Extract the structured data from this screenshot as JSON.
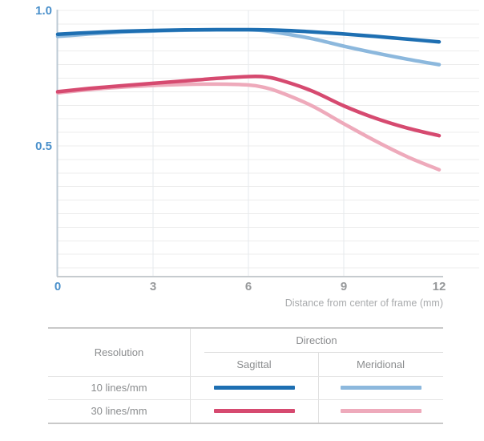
{
  "colors": {
    "accent_blue": "#4a90cb",
    "tick_gray": "#97999b",
    "caption_gray": "#a9abad",
    "grid_horizontal": "#ececec",
    "grid_vertical": "#e6eaec",
    "axis_left": "#bccad4",
    "axis_bottom": "#c6cbcf",
    "curve_10_sagittal": "#1e6fb2",
    "curve_10_meridional": "#8cb8dd",
    "curve_30_sagittal": "#d64a70",
    "curve_30_meridional": "#eeaabb"
  },
  "chart_data": {
    "type": "line",
    "title": "",
    "xlabel": "Distance from center of frame (mm)",
    "ylabel": "",
    "x_range": [
      0,
      12
    ],
    "x_ticks": [
      0,
      3,
      6,
      9,
      12
    ],
    "y_labeled_ticks": [
      1.0,
      0.5
    ],
    "y_minor_grid_step": 0.05,
    "y_shown_range": [
      0.02,
      1.03
    ],
    "grid": "on",
    "legend_position": "table below chart",
    "series": [
      {
        "name": "10 lines/mm Sagittal",
        "color": "#1e6fb2",
        "z": 4,
        "points": [
          [
            0,
            0.912
          ],
          [
            1,
            0.918
          ],
          [
            2,
            0.923
          ],
          [
            3,
            0.926
          ],
          [
            4,
            0.928
          ],
          [
            5,
            0.929
          ],
          [
            6,
            0.929
          ],
          [
            7,
            0.927
          ],
          [
            8,
            0.921
          ],
          [
            9,
            0.913
          ],
          [
            10,
            0.904
          ],
          [
            11,
            0.894
          ],
          [
            12,
            0.884
          ]
        ]
      },
      {
        "name": "10 lines/mm Meridional",
        "color": "#8cb8dd",
        "z": 1,
        "points": [
          [
            0,
            0.904
          ],
          [
            1,
            0.913
          ],
          [
            2,
            0.92
          ],
          [
            3,
            0.924
          ],
          [
            4,
            0.927
          ],
          [
            5,
            0.928
          ],
          [
            6,
            0.928
          ],
          [
            6.5,
            0.925
          ],
          [
            7,
            0.917
          ],
          [
            8,
            0.896
          ],
          [
            9,
            0.868
          ],
          [
            10,
            0.843
          ],
          [
            11,
            0.82
          ],
          [
            12,
            0.8
          ]
        ]
      },
      {
        "name": "30 lines/mm Sagittal",
        "color": "#d64a70",
        "z": 3,
        "points": [
          [
            0,
            0.7
          ],
          [
            1,
            0.712
          ],
          [
            2,
            0.722
          ],
          [
            3,
            0.731
          ],
          [
            4,
            0.74
          ],
          [
            5,
            0.749
          ],
          [
            6,
            0.756
          ],
          [
            6.5,
            0.755
          ],
          [
            7,
            0.743
          ],
          [
            8,
            0.703
          ],
          [
            9,
            0.648
          ],
          [
            10,
            0.602
          ],
          [
            11,
            0.566
          ],
          [
            12,
            0.538
          ]
        ]
      },
      {
        "name": "30 lines/mm Meridional",
        "color": "#eeaabb",
        "z": 2,
        "points": [
          [
            0,
            0.696
          ],
          [
            1,
            0.708
          ],
          [
            2,
            0.717
          ],
          [
            3,
            0.723
          ],
          [
            4,
            0.727
          ],
          [
            5,
            0.728
          ],
          [
            6,
            0.725
          ],
          [
            6.5,
            0.716
          ],
          [
            7,
            0.698
          ],
          [
            8,
            0.648
          ],
          [
            9,
            0.582
          ],
          [
            10,
            0.518
          ],
          [
            11,
            0.46
          ],
          [
            12,
            0.412
          ]
        ]
      }
    ]
  },
  "legend_table": {
    "resolution_header": "Resolution",
    "direction_header": "Direction",
    "columns": [
      "Sagittal",
      "Meridional"
    ],
    "rows": [
      {
        "label": "10 lines/mm",
        "sagittal_color": "#1e6fb2",
        "meridional_color": "#8cb8dd"
      },
      {
        "label": "30 lines/mm",
        "sagittal_color": "#d64a70",
        "meridional_color": "#eeaabb"
      }
    ]
  }
}
